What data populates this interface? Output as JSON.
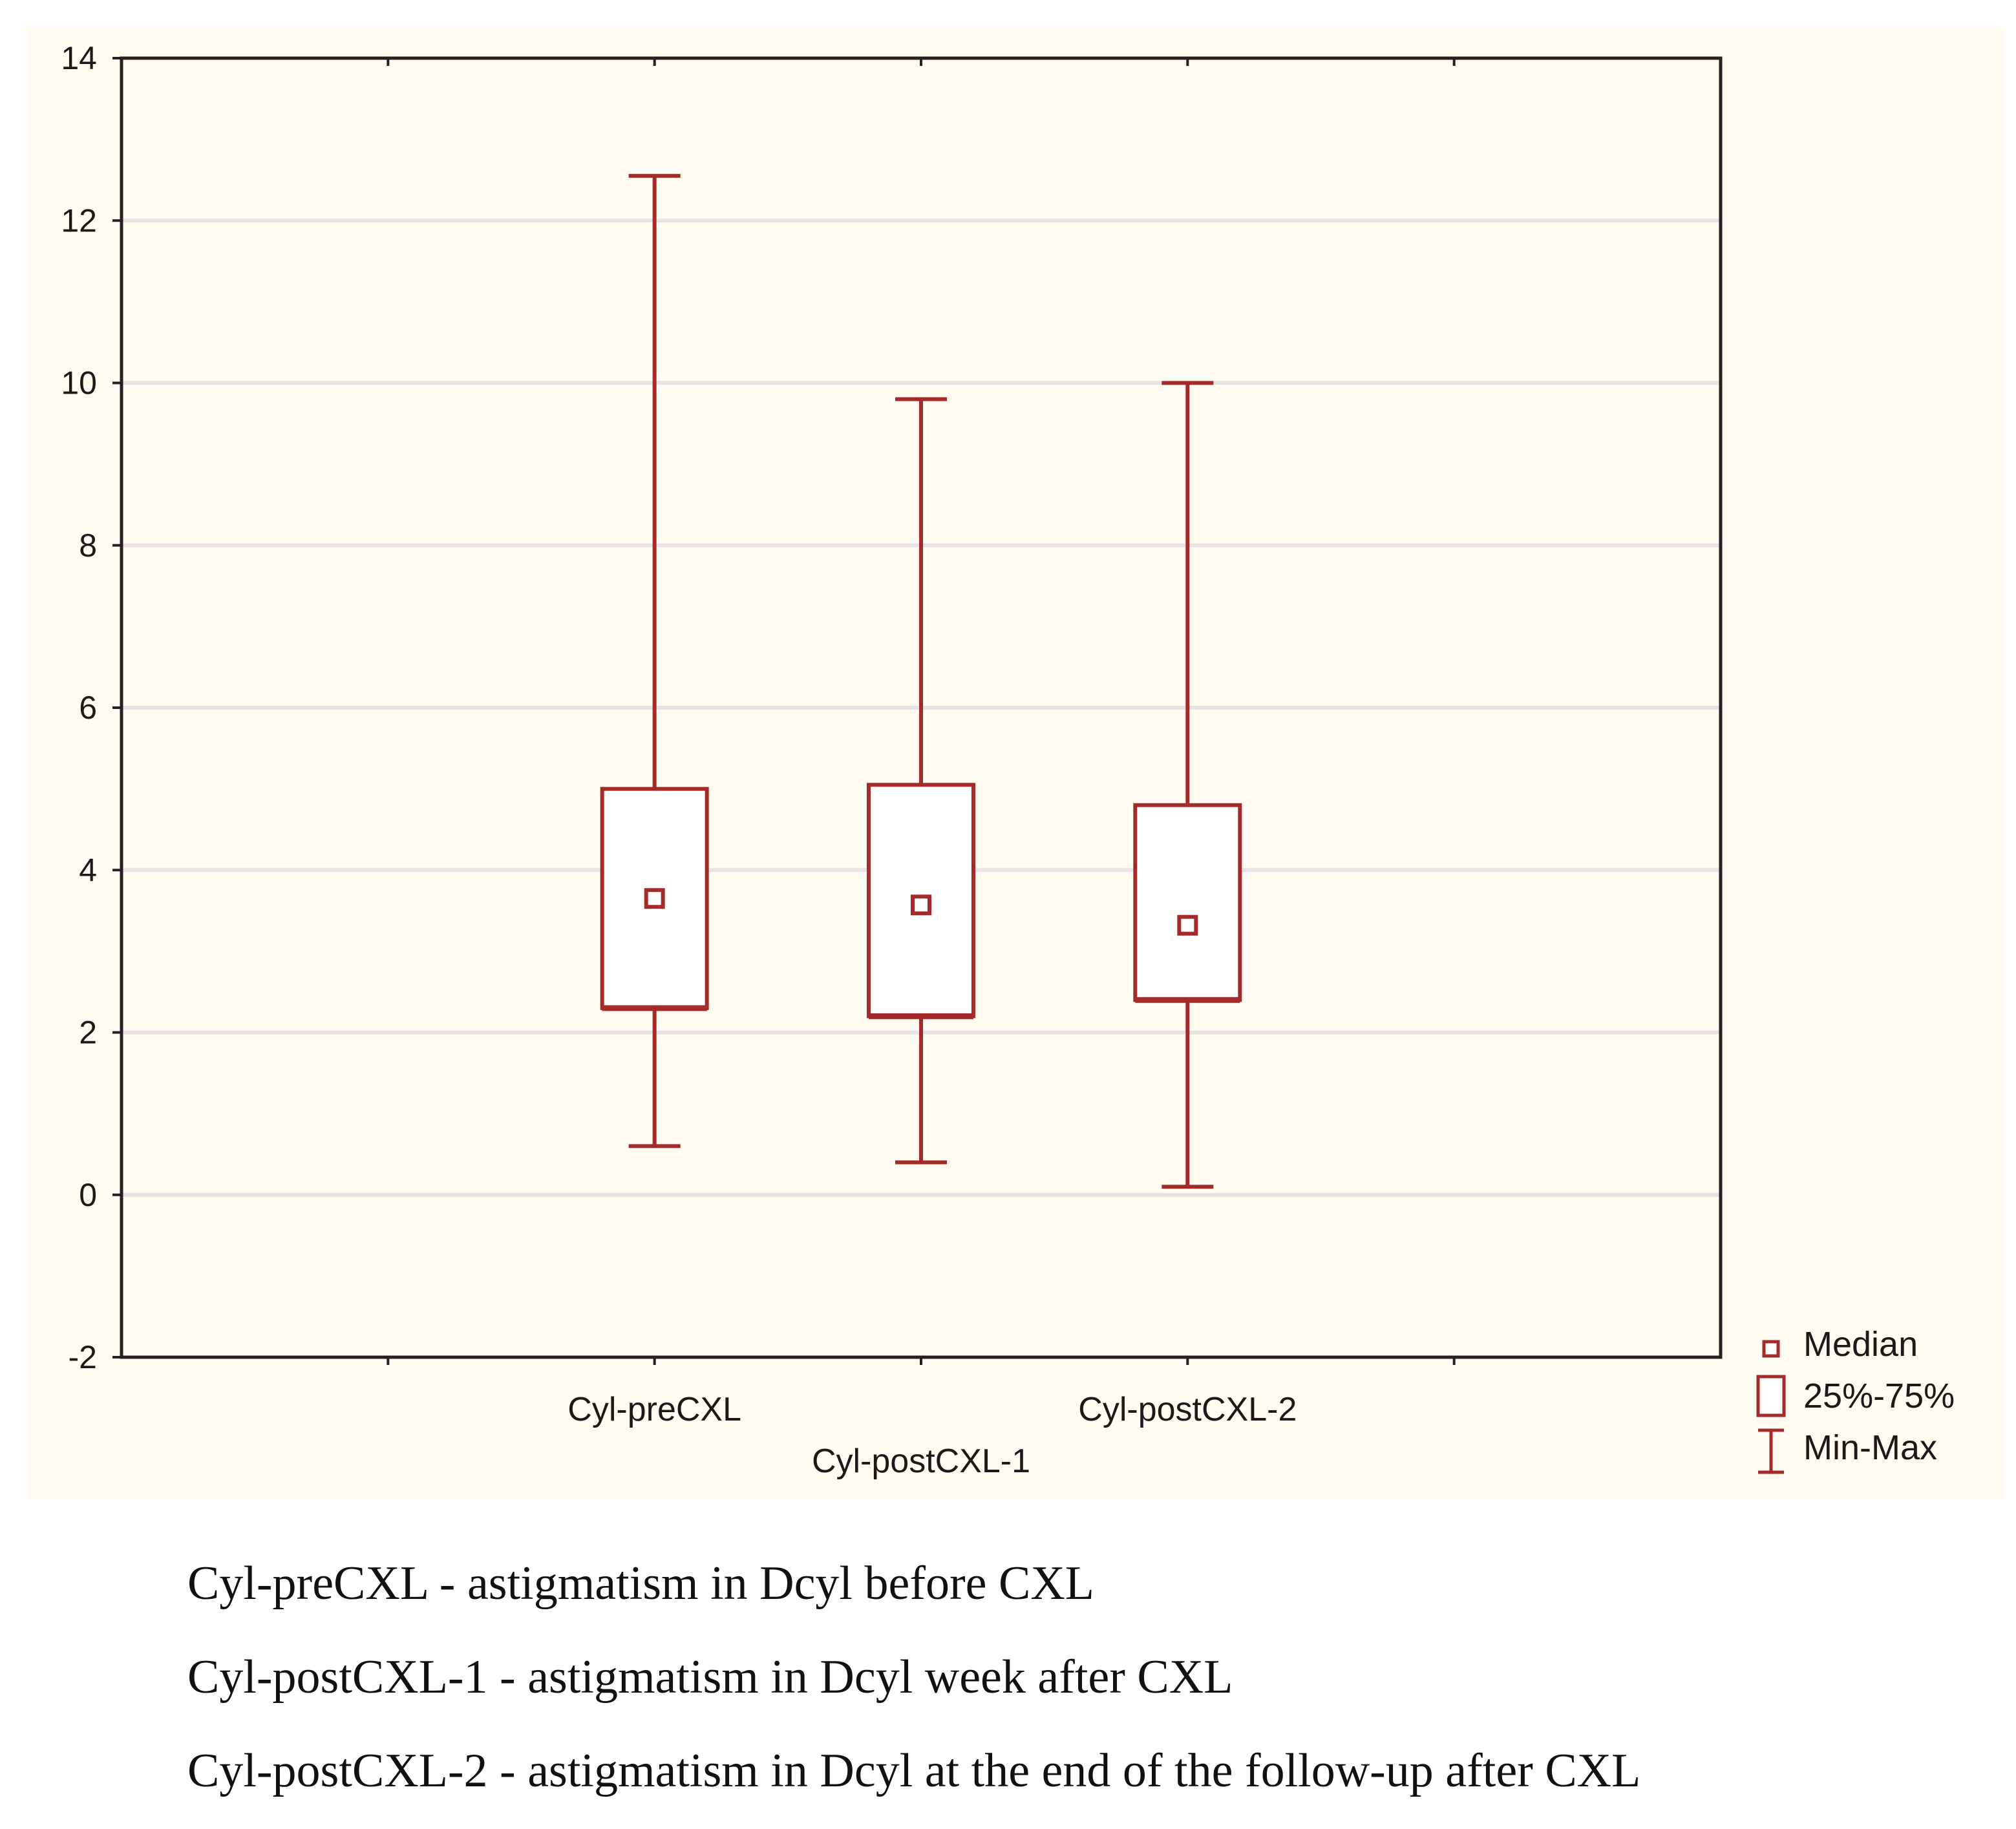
{
  "chart_data": {
    "type": "boxplot",
    "categories": [
      "Cyl-preCXL",
      "Cyl-postCXL-1",
      "Cyl-postCXL-2"
    ],
    "boxes": [
      {
        "category": "Cyl-preCXL",
        "min": 0.6,
        "q1": 2.3,
        "median": 3.65,
        "q3": 5.0,
        "max": 12.55
      },
      {
        "category": "Cyl-postCXL-1",
        "min": 0.4,
        "q1": 2.2,
        "median": 3.57,
        "q3": 5.05,
        "max": 9.8
      },
      {
        "category": "Cyl-postCXL-2",
        "min": 0.1,
        "q1": 2.4,
        "median": 3.32,
        "q3": 4.8,
        "max": 10.0
      }
    ],
    "ylim": [
      -2,
      14
    ],
    "yticks": [
      "-2",
      "0",
      "2",
      "4",
      "6",
      "8",
      "10",
      "12",
      "14"
    ],
    "grid": true,
    "legend_position": "bottom-right outside",
    "legend": [
      {
        "symbol": "median-square",
        "label": "Median"
      },
      {
        "symbol": "box",
        "label": "25%-75%"
      },
      {
        "symbol": "whisker",
        "label": "Min-Max"
      }
    ],
    "colors": {
      "series": "#a52a2a",
      "grid": "#e4e4e4",
      "background": "#fffbf0",
      "axis": "#222222"
    }
  },
  "captions": [
    "Cyl-preCXL - astigmatism in Dcyl before CXL",
    "Cyl-postCXL-1 - astigmatism in Dcyl week after CXL",
    "Cyl-postCXL-2 - astigmatism in Dcyl at the end of the follow-up after CXL"
  ]
}
